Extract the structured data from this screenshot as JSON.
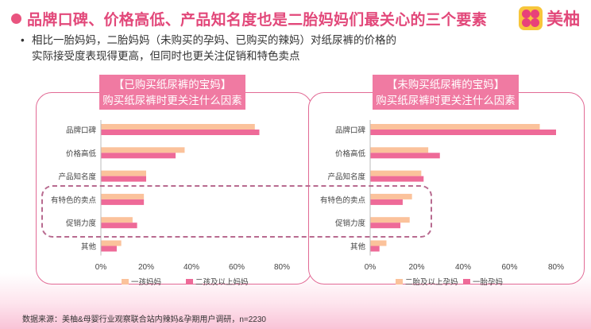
{
  "header": {
    "title": "品牌口碑、价格高低、产品知名度也是二胎妈妈们最关心的三个要素",
    "logo_text": "美柚",
    "logo_icon": "flower-icon"
  },
  "bullet": {
    "text": "相比一胎妈妈，二胎妈妈（未购买的孕妈、已购买的辣妈）对纸尿裤的价格的实际接受度表现得更高，但同时也更关注促销和特色卖点"
  },
  "colors": {
    "title_pink": "#e2487a",
    "series_light": "#fbc29b",
    "series_pink": "#ee6a98",
    "header_pink": "#f07aa2"
  },
  "chart_data": [
    {
      "type": "bar",
      "orientation": "horizontal",
      "title_line1": "【已购买纸尿裤的宝妈】",
      "title_line2": "购买纸尿裤时更关注什么因素",
      "categories": [
        "品牌口碑",
        "价格高低",
        "产品知名度",
        "有特色的卖点",
        "促销力度",
        "其他"
      ],
      "series": [
        {
          "name": "一孩妈妈",
          "color": "#fbc29b",
          "values": [
            68,
            37,
            20,
            19,
            14,
            9
          ]
        },
        {
          "name": "二孩及以上妈妈",
          "color": "#ee6a98",
          "values": [
            70,
            33,
            20,
            19,
            16,
            7
          ]
        }
      ],
      "xlim": [
        0,
        80
      ],
      "xticks": [
        "0%",
        "20%",
        "40%",
        "60%",
        "80%"
      ],
      "legend_position": "bottom"
    },
    {
      "type": "bar",
      "orientation": "horizontal",
      "title_line1": "【未购买纸尿裤的宝妈】",
      "title_line2": "购买纸尿裤时更关注什么因素",
      "categories": [
        "品牌口碑",
        "价格高低",
        "产品知名度",
        "有特色的卖点",
        "促销力度",
        "其他"
      ],
      "series": [
        {
          "name": "二胎及以上孕妈",
          "color": "#fbc29b",
          "values": [
            73,
            25,
            22,
            18,
            17,
            7
          ]
        },
        {
          "name": "一胎孕妈",
          "color": "#ee6a98",
          "values": [
            80,
            30,
            23,
            14,
            13,
            4
          ]
        }
      ],
      "xlim": [
        0,
        80
      ],
      "xticks": [
        "0%",
        "20%",
        "40%",
        "60%",
        "80%"
      ],
      "legend_position": "bottom"
    }
  ],
  "source": "数据来源：美柚&母婴行业观察联合站内辣妈&孕期用户调研，n=2230"
}
